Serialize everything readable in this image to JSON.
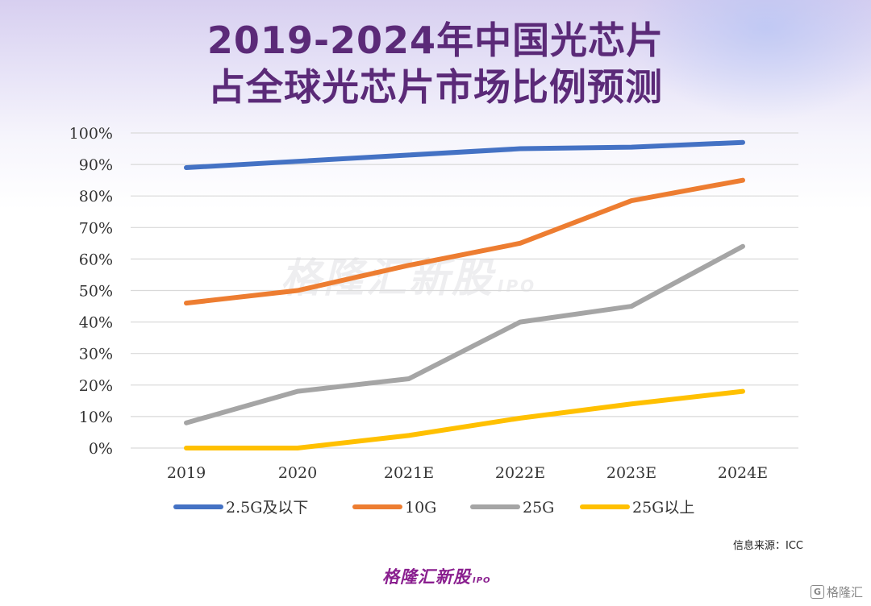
{
  "title_line1": "2019-2024年中国光芯片",
  "title_line2": "占全球光芯片市场比例预测",
  "source": "信息来源：ICC",
  "brand": {
    "name": "格隆汇新股",
    "suffix": "IPO"
  },
  "watermark": {
    "name": "格隆汇新股",
    "suffix": "IPO"
  },
  "corner_logo": {
    "icon": "G",
    "text": "格隆汇"
  },
  "chart_data": {
    "type": "line",
    "categories": [
      "2019",
      "2020",
      "2021E",
      "2022E",
      "2023E",
      "2024E"
    ],
    "ylim": [
      0,
      100
    ],
    "yticks": [
      0,
      10,
      20,
      30,
      40,
      50,
      60,
      70,
      80,
      90,
      100
    ],
    "ytick_format": "%",
    "grid": true,
    "legend_position": "bottom",
    "series": [
      {
        "name": "2.5G及以下",
        "color": "#4472c4",
        "values": [
          89,
          91,
          93,
          95,
          95.5,
          97
        ]
      },
      {
        "name": "10G",
        "color": "#ed7d31",
        "values": [
          46,
          50,
          58,
          65,
          78.5,
          85
        ]
      },
      {
        "name": "25G",
        "color": "#a5a5a5",
        "values": [
          8,
          18,
          22,
          40,
          45,
          64
        ]
      },
      {
        "name": "25G以上",
        "color": "#ffc000",
        "values": [
          0,
          0,
          4,
          9.5,
          14,
          18
        ]
      }
    ]
  }
}
